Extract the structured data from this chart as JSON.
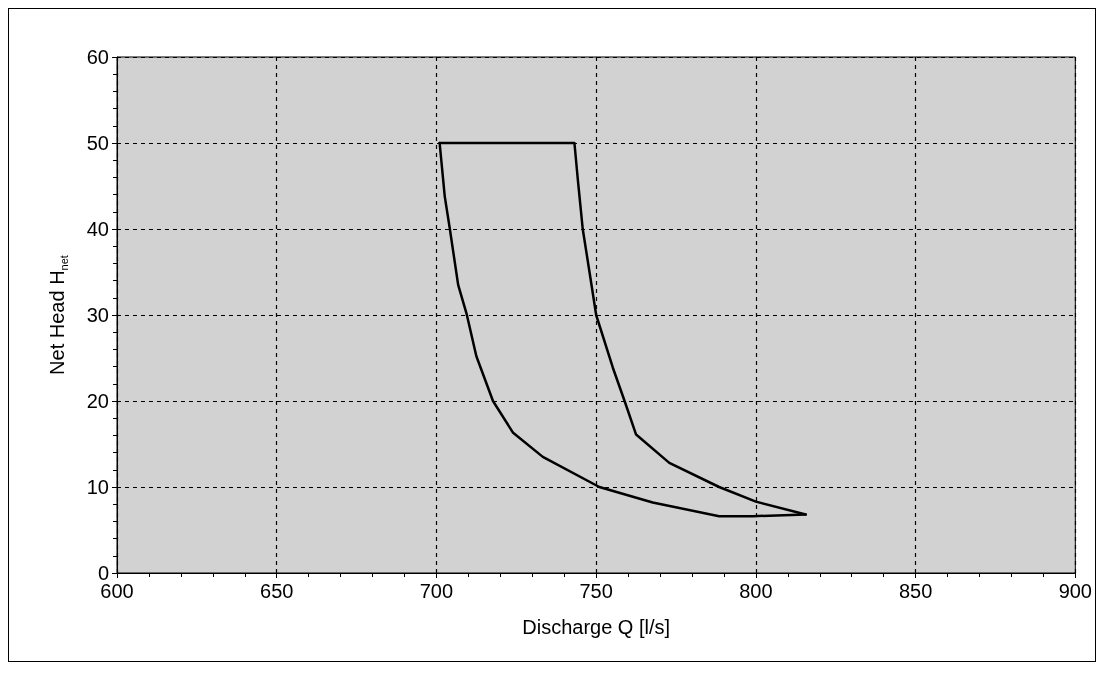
{
  "chart_data": {
    "type": "line",
    "xlabel": "Discharge Q [l/s]",
    "ylabel": "Net Head H$_{net}$",
    "series": [
      {
        "color": "#000000",
        "x": [
          701,
          743.2,
          744.3,
          745.8,
          748,
          750,
          755.2,
          758.9,
          762.5,
          772.9,
          788.5,
          800,
          815.6
        ],
        "values": [
          50,
          50,
          45.6,
          40,
          34.8,
          30,
          23.9,
          20,
          16.1,
          12.8,
          10,
          8.3,
          6.8
        ]
      },
      {
        "color": "#000000",
        "x": [
          701,
          702.6,
          704.2,
          706.8,
          709.4,
          712.5,
          717.7,
          724,
          733.3,
          751,
          767.7,
          788.5,
          799,
          815.6
        ],
        "values": [
          50,
          43.8,
          40,
          33.5,
          30.2,
          25.2,
          20,
          16.3,
          13.5,
          10,
          8.2,
          6.6,
          6.6,
          6.8
        ]
      }
    ],
    "xlim": [
      600,
      900
    ],
    "xticks": [
      600,
      650,
      700,
      750,
      800,
      850,
      900
    ],
    "ylim": [
      0,
      60
    ],
    "yticks": [
      0,
      10,
      20,
      30,
      40,
      50,
      60
    ],
    "grid": true,
    "marker": "none",
    "line_style": "solid"
  }
}
